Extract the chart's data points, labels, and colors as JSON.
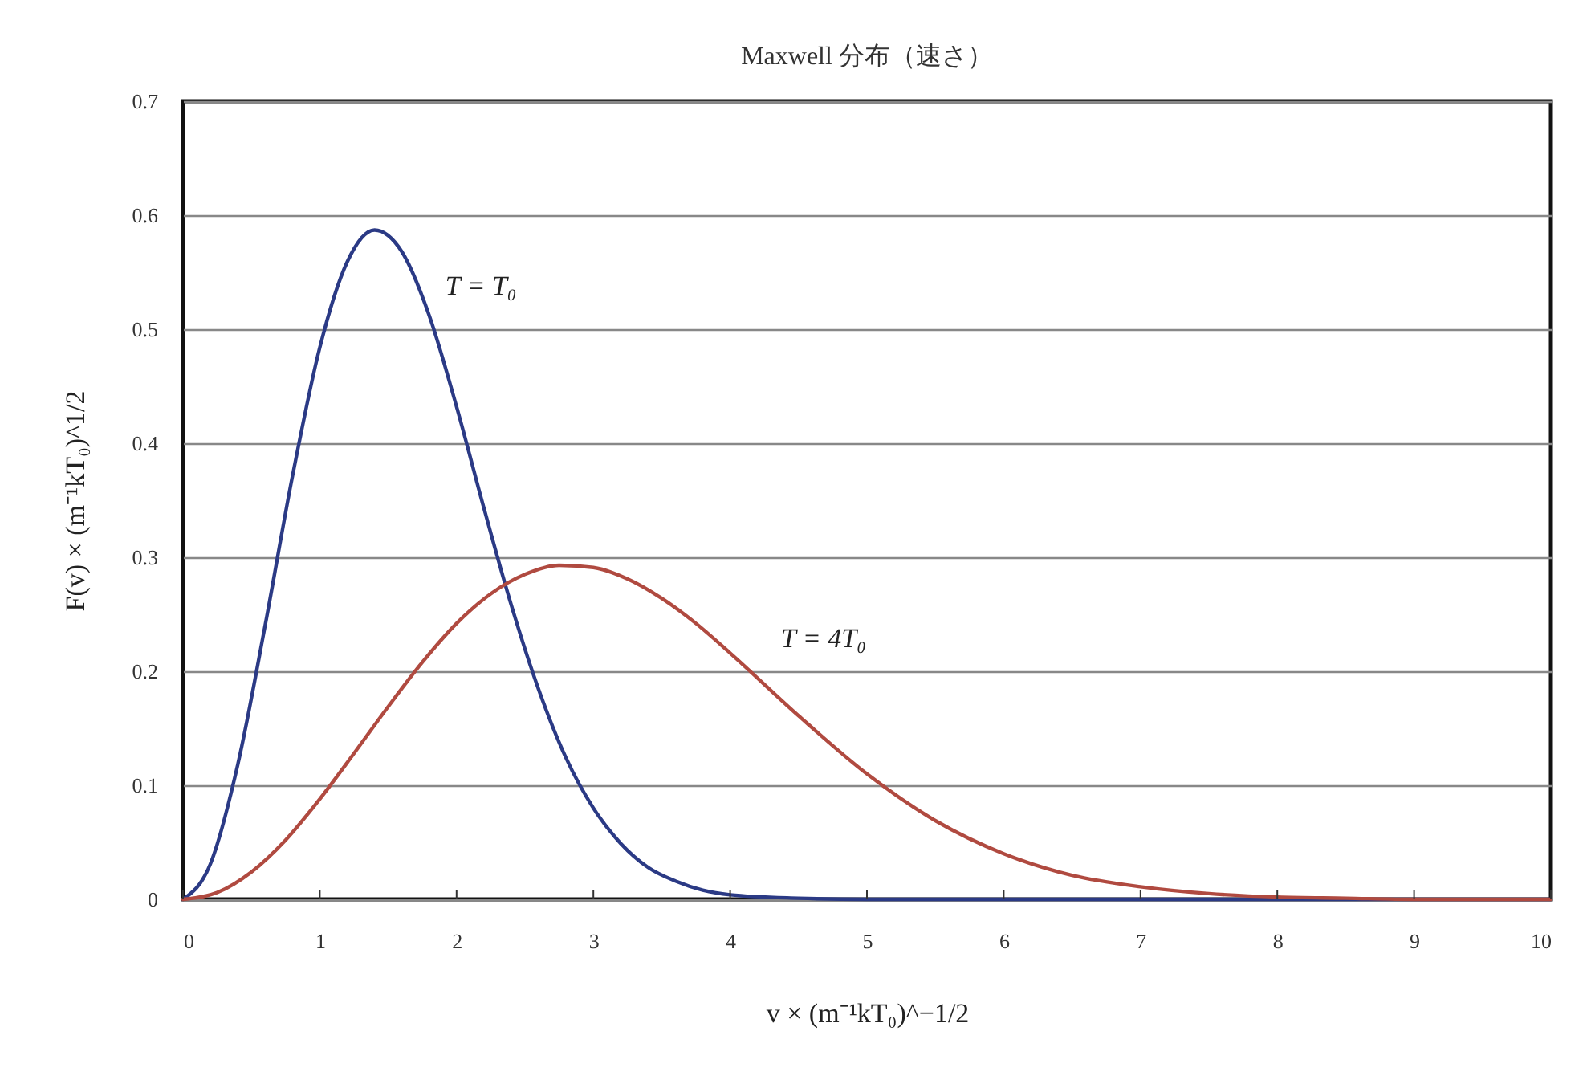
{
  "chart_data": {
    "type": "line",
    "title": "Maxwell 分布（速さ）",
    "xlabel": "v × (m⁻¹kT₀)^−1/2",
    "ylabel": "F(v) × (m⁻¹kT₀)^1/2",
    "series": [
      {
        "name": "T = T₀",
        "color": "#2b3a85",
        "x": [
          0,
          0.2,
          0.4,
          0.6,
          0.8,
          1.0,
          1.2,
          1.4,
          1.6,
          1.8,
          2.0,
          2.2,
          2.4,
          2.6,
          2.8,
          3.0,
          3.2,
          3.4,
          3.6,
          3.8,
          4.0,
          4.5,
          5,
          6,
          7,
          8,
          9,
          10
        ],
        "values": [
          0,
          0.031,
          0.118,
          0.24,
          0.371,
          0.484,
          0.559,
          0.587,
          0.568,
          0.512,
          0.432,
          0.343,
          0.258,
          0.184,
          0.124,
          0.08,
          0.049,
          0.028,
          0.016,
          0.008,
          0.004,
          0.001,
          0,
          0,
          0,
          0,
          0,
          0
        ]
      },
      {
        "name": "T = 4T₀",
        "color": "#b04a40",
        "x": [
          0,
          0.25,
          0.5,
          0.75,
          1.0,
          1.25,
          1.5,
          1.75,
          2.0,
          2.25,
          2.5,
          2.75,
          3.0,
          3.25,
          3.5,
          3.75,
          4.0,
          4.5,
          5.0,
          5.5,
          6.0,
          6.5,
          7.0,
          7.5,
          8.0,
          8.5,
          9.0,
          10
        ],
        "values": [
          0,
          0.006,
          0.024,
          0.052,
          0.088,
          0.128,
          0.169,
          0.208,
          0.242,
          0.268,
          0.285,
          0.293,
          0.291,
          0.281,
          0.264,
          0.242,
          0.216,
          0.161,
          0.11,
          0.069,
          0.04,
          0.021,
          0.011,
          0.005,
          0.002,
          0.001,
          0,
          0
        ]
      }
    ],
    "xlim": [
      0,
      10
    ],
    "xticks": [
      0,
      1,
      2,
      3,
      4,
      5,
      6,
      7,
      8,
      9,
      10
    ],
    "ylim": [
      0,
      0.7
    ],
    "yticks": [
      0,
      0.1,
      0.2,
      0.3,
      0.4,
      0.5,
      0.6,
      0.7
    ],
    "grid": "y"
  }
}
